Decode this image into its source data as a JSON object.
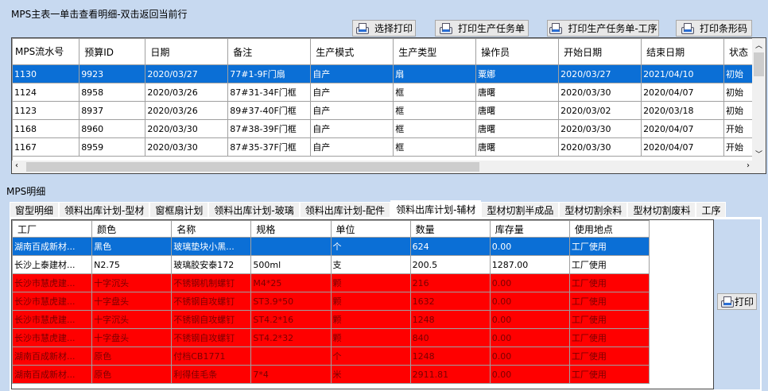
{
  "top": {
    "title": "MPS主表一单击查看明细-双击返回当前行",
    "buttons": [
      "选择打印",
      "打印生产任务单",
      "打印生产任务单-工序",
      "打印条形码"
    ],
    "columns": [
      "MPS流水号",
      "预算ID",
      "日期",
      "备注",
      "生产模式",
      "生产类型",
      "操作员",
      "开始日期",
      "结束日期",
      "状态"
    ],
    "rows": [
      [
        "1130",
        "9923",
        "2020/03/27",
        "77#1-9F门扇",
        "自产",
        "扇",
        "粟娜",
        "2020/03/27",
        "2021/04/10",
        "初始"
      ],
      [
        "1124",
        "8958",
        "2020/03/26",
        "87#31-34F门框",
        "自产",
        "框",
        "唐曙",
        "2020/03/30",
        "2020/04/07",
        "初始"
      ],
      [
        "1123",
        "8937",
        "2020/03/26",
        "89#37-40F门框",
        "自产",
        "框",
        "唐曙",
        "2020/03/02",
        "2020/03/18",
        "初始"
      ],
      [
        "1168",
        "8960",
        "2020/03/30",
        "87#38-39F门框",
        "自产",
        "框",
        "唐曙",
        "2020/03/30",
        "2020/04/07",
        "开始"
      ],
      [
        "1167",
        "8959",
        "2020/03/30",
        "87#35-37F门框",
        "自产",
        "框",
        "唐曙",
        "2020/03/30",
        "2020/04/07",
        "开始"
      ]
    ]
  },
  "detail": {
    "title": "MPS明细",
    "tabs": [
      "窗型明细",
      "领料出库计划-型材",
      "窗框扇计划",
      "领料出库计划-玻璃",
      "领料出库计划-配件",
      "领料出库计划-辅材",
      "型材切割半成品",
      "型材切割余料",
      "型材切割废料",
      "工序"
    ],
    "active_tab": 5,
    "columns": [
      "工厂",
      "颜色",
      "名称",
      "规格",
      "单位",
      "数量",
      "库存量",
      "使用地点"
    ],
    "rows": [
      [
        "湖南百成新材...",
        "黑色",
        "玻璃垫块小黑...",
        "",
        "个",
        "624",
        "0.00",
        "工厂使用"
      ],
      [
        "长沙上泰建材...",
        "N2.75",
        "玻璃胶安泰172",
        "500ml",
        "支",
        "200.5",
        "1287.00",
        "工厂使用"
      ],
      [
        "长沙市慧虎建...",
        "十字沉头",
        "不锈钢机制螺钉",
        "M4*25",
        "颗",
        "216",
        "0.00",
        "工厂使用"
      ],
      [
        "长沙市慧虎建...",
        "十字盘头",
        "不锈钢自攻螺钉",
        "ST3.9*50",
        "颗",
        "1632",
        "0.00",
        "工厂使用"
      ],
      [
        "长沙市慧虎建...",
        "十字沉头",
        "不锈钢自攻螺钉",
        "ST4.2*16",
        "颗",
        "1248",
        "0.00",
        "工厂使用"
      ],
      [
        "长沙市慧虎建...",
        "十字盘头",
        "不锈钢自攻螺钉",
        "ST4.2*32",
        "颗",
        "840",
        "0.00",
        "工厂使用"
      ],
      [
        "湖南百成新材...",
        "原色",
        "付档CB1771",
        "",
        "个",
        "1248",
        "0.00",
        "工厂使用"
      ],
      [
        "湖南百成新材...",
        "原色",
        "利得佳毛条",
        "7*4",
        "米",
        "2911.81",
        "0.00",
        "工厂使用"
      ]
    ],
    "row_styles": [
      "selected",
      "normal",
      "red",
      "red",
      "red",
      "red",
      "red",
      "red"
    ],
    "print_label": "打印"
  },
  "colors": {
    "selected": "#0b6fd6",
    "warning_row": "#ff0000",
    "background": "#c7d9f0"
  }
}
